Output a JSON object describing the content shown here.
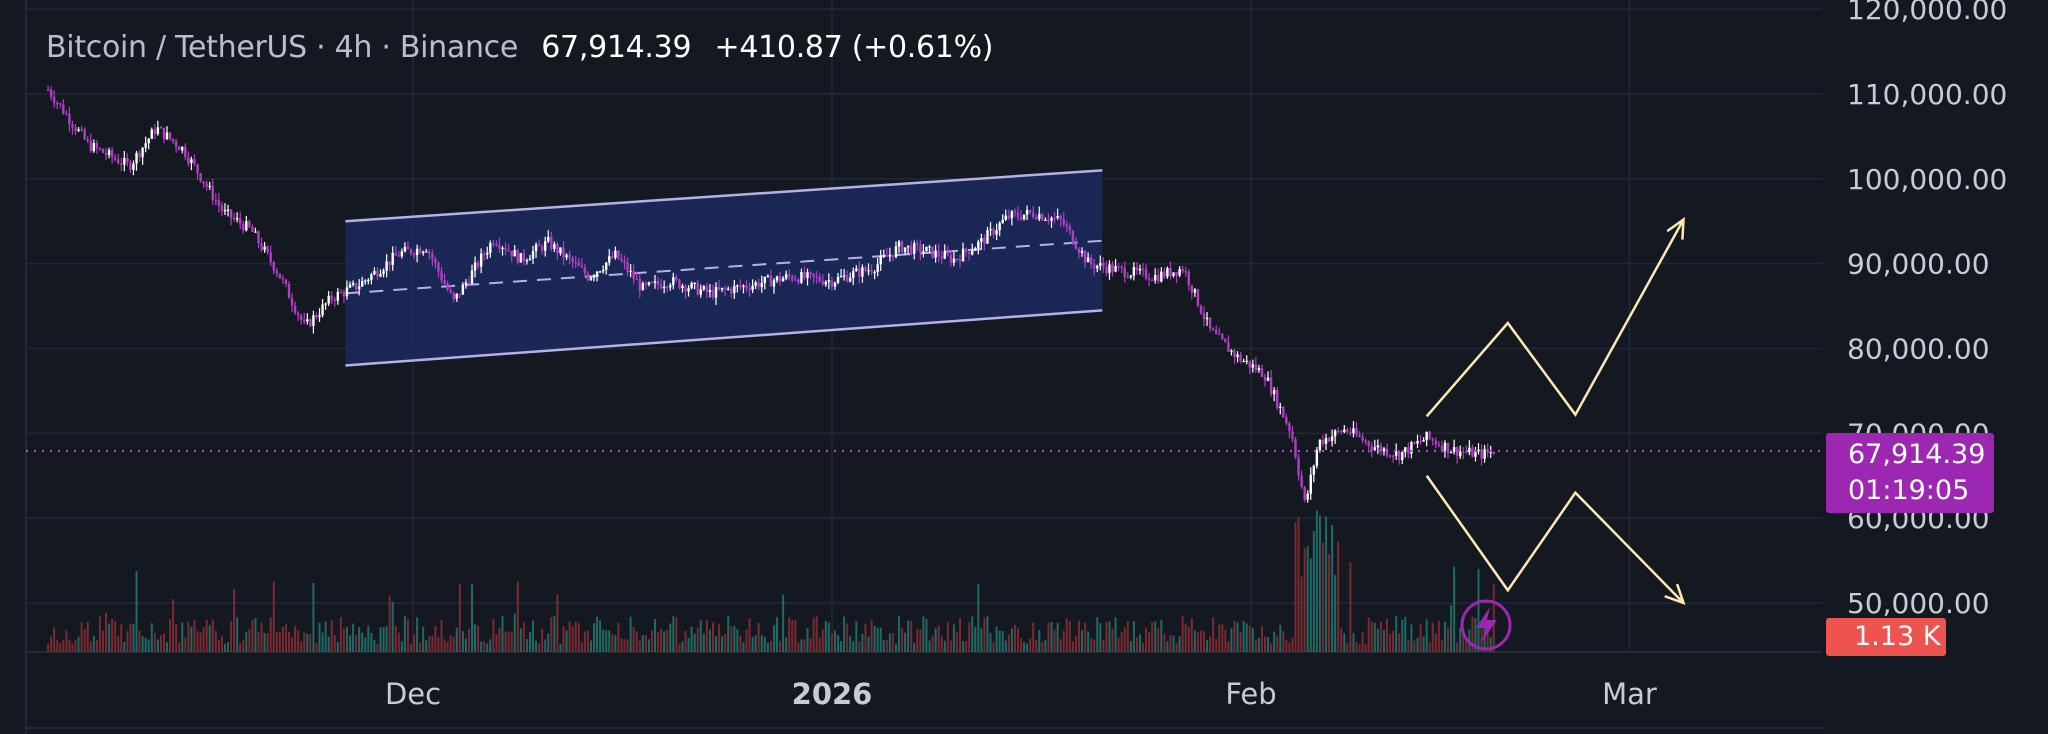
{
  "header": {
    "symbol": "Bitcoin / TetherUS · 4h · Binance",
    "last_price": "67,914.39",
    "change": "+410.87 (+0.61%)"
  },
  "price_tag": {
    "price": "67,914.39",
    "countdown": "01:19:05"
  },
  "volume_tag": {
    "label": "1.13 K"
  },
  "colors": {
    "background": "#141821",
    "candle_up": "#ffffff",
    "candle_down": "#b03fc4",
    "channel_fill": "#1b2a5e",
    "channel_line": "#b7b0e8",
    "projection": "#fde9b3",
    "price_line": "#b64fcf",
    "volume_up": "#1f6b63",
    "volume_down": "#7a2a30"
  },
  "chart_data": {
    "type": "candlestick",
    "y_axis": {
      "ticks": [
        50000,
        60000,
        70000,
        80000,
        90000,
        100000,
        110000,
        120000
      ],
      "tick_labels": [
        "50,000.00",
        "60,000.00",
        "70,000.00",
        "80,000.00",
        "90,000.00",
        "100,000.00",
        "110,000.00",
        "120,000.00"
      ],
      "ylim": [
        44500,
        121000
      ]
    },
    "x_axis": {
      "tick_labels": [
        "Dec",
        "2026",
        "Feb",
        "Mar"
      ],
      "bold": [
        false,
        true,
        false,
        false
      ]
    },
    "grid": true,
    "price_path": {
      "x": [
        "2025-11-04",
        "2025-11-07",
        "2025-11-10",
        "2025-11-12",
        "2025-11-14",
        "2025-11-17",
        "2025-11-19",
        "2025-11-21",
        "2025-11-23",
        "2025-11-25",
        "2025-11-27",
        "2025-11-30",
        "2025-12-02",
        "2025-12-04",
        "2025-12-07",
        "2025-12-09",
        "2025-12-11",
        "2025-12-14",
        "2025-12-16",
        "2025-12-18",
        "2025-12-20",
        "2025-12-23",
        "2025-12-26",
        "2025-12-29",
        "2026-01-01",
        "2026-01-04",
        "2026-01-06",
        "2026-01-08",
        "2026-01-10",
        "2026-01-12",
        "2026-01-14",
        "2026-01-16",
        "2026-01-18",
        "2026-01-20",
        "2026-01-23",
        "2026-01-25",
        "2026-01-27",
        "2026-01-29",
        "2026-01-31",
        "2026-02-02",
        "2026-02-04",
        "2026-02-05",
        "2026-02-06",
        "2026-02-08",
        "2026-02-10",
        "2026-02-12",
        "2026-02-14",
        "2026-02-16",
        "2026-02-18",
        "2026-02-19"
      ],
      "close": [
        110500,
        104000,
        101500,
        106000,
        103500,
        96000,
        94000,
        89000,
        82500,
        86000,
        87500,
        91200,
        92000,
        85500,
        93000,
        90500,
        92500,
        88500,
        91000,
        87000,
        88000,
        86500,
        87500,
        88500,
        88000,
        89500,
        92000,
        91500,
        90500,
        92500,
        95500,
        96000,
        95000,
        90000,
        89000,
        88500,
        89500,
        82000,
        79000,
        77000,
        70000,
        61500,
        69000,
        70500,
        68500,
        67500,
        69500,
        68000,
        67500,
        67914
      ]
    },
    "channel": {
      "start": "2025-11-26",
      "end": "2026-01-21",
      "upper": [
        95000,
        101000
      ],
      "lower": [
        78000,
        84500
      ],
      "mid": [
        86500,
        92700
      ]
    },
    "current_price": 67914.39,
    "volume": {
      "label": "1.13 K"
    },
    "projections": {
      "bullish": [
        72000,
        83000,
        72200,
        95200
      ],
      "bearish": [
        65000,
        51500,
        63000,
        50000
      ]
    }
  }
}
